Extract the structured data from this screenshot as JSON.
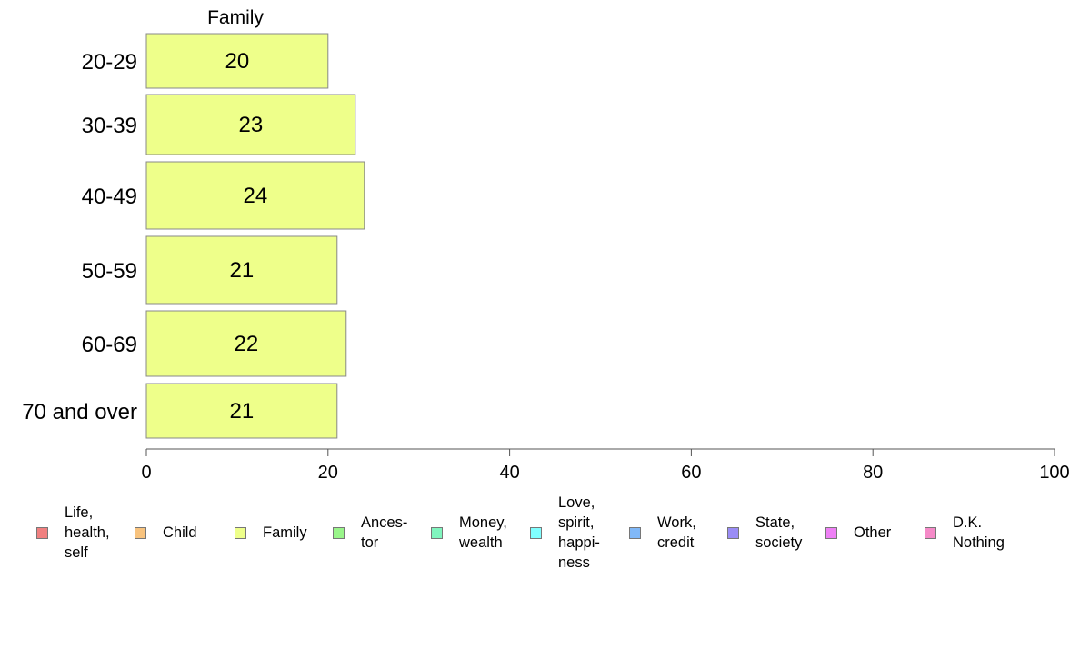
{
  "chart_data": {
    "type": "bar",
    "orientation": "horizontal",
    "panel_title": "Family",
    "categories": [
      "20-29",
      "30-39",
      "40-49",
      "50-59",
      "60-69",
      "70 and over"
    ],
    "series": [
      {
        "name": "Family",
        "values": [
          20,
          23,
          24,
          21,
          22,
          21
        ]
      }
    ],
    "bar_color": "#EEFF8A",
    "bar_border_color": "#888888",
    "xlim": [
      0,
      100
    ],
    "xticks": [
      0,
      20,
      40,
      60,
      80,
      100
    ],
    "xlabel": "",
    "ylabel": "",
    "grid": false,
    "legend_position": "bottom",
    "legend": [
      {
        "label": "Life,\nhealth,\nself",
        "color": "#F08080"
      },
      {
        "label": "Child",
        "color": "#F8C37E"
      },
      {
        "label": "Family",
        "color": "#EEFF8A"
      },
      {
        "label": "Ances-\ntor",
        "color": "#99F58A"
      },
      {
        "label": "Money,\nwealth",
        "color": "#80F5BE"
      },
      {
        "label": "Love,\nspirit,\nhappi-\nness",
        "color": "#80FFFF"
      },
      {
        "label": "Work,\ncredit",
        "color": "#80B8F8"
      },
      {
        "label": "State,\nsociety",
        "color": "#9A8CF5"
      },
      {
        "label": "Other",
        "color": "#EE80F5"
      },
      {
        "label": "D.K.\nNothing",
        "color": "#F58AC8"
      }
    ]
  }
}
